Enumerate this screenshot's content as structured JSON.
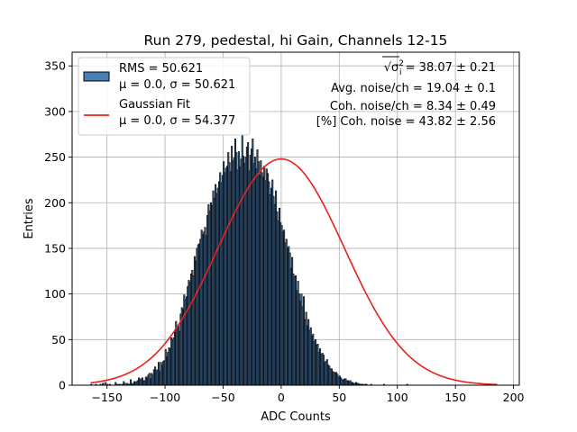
{
  "chart_data": {
    "type": "bar",
    "title": "Run 279, pedestal, hi Gain, Channels 12-15",
    "xlabel": "ADC Counts",
    "ylabel": "Entries",
    "xlim": [
      -180,
      205
    ],
    "ylim": [
      0,
      365
    ],
    "grid": true,
    "xticks": [
      -150,
      -100,
      -50,
      0,
      50,
      100,
      150,
      200
    ],
    "xtick_labels": [
      "−150",
      "−100",
      "−50",
      "0",
      "50",
      "100",
      "150",
      "200"
    ],
    "yticks": [
      0,
      50,
      100,
      150,
      200,
      250,
      300,
      350
    ],
    "ytick_labels": [
      "0",
      "50",
      "100",
      "150",
      "200",
      "250",
      "300",
      "350"
    ],
    "histogram": {
      "name": "RMS = 50.621",
      "params": "μ = 0.0, σ = 50.621",
      "bin_start": -164,
      "bin_width": 1,
      "counts": [
        1,
        0,
        0,
        0,
        1,
        0,
        0,
        0,
        1,
        0,
        2,
        0,
        3,
        0,
        1,
        0,
        1,
        0,
        0,
        0,
        0,
        3,
        1,
        0,
        1,
        1,
        0,
        1,
        4,
        2,
        0,
        2,
        1,
        1,
        6,
        2,
        1,
        4,
        3,
        4,
        5,
        8,
        6,
        7,
        8,
        5,
        5,
        9,
        8,
        11,
        13,
        7,
        13,
        11,
        17,
        20,
        16,
        17,
        25,
        15,
        25,
        22,
        26,
        27,
        39,
        31,
        36,
        41,
        40,
        52,
        50,
        52,
        58,
        70,
        65,
        65,
        59,
        78,
        85,
        83,
        99,
        94,
        97,
        108,
        115,
        113,
        122,
        126,
        120,
        141,
        136,
        150,
        154,
        155,
        160,
        170,
        165,
        168,
        173,
        164,
        186,
        198,
        191,
        200,
        197,
        213,
        205,
        220,
        210,
        216,
        223,
        233,
        222,
        230,
        245,
        233,
        238,
        240,
        255,
        244,
        234,
        262,
        246,
        249,
        270,
        255,
        236,
        256,
        239,
        248,
        275,
        251,
        243,
        250,
        261,
        266,
        235,
        252,
        259,
        270,
        243,
        250,
        237,
        258,
        245,
        230,
        246,
        233,
        228,
        240,
        224,
        237,
        232,
        223,
        209,
        216,
        225,
        207,
        198,
        213,
        190,
        180,
        194,
        178,
        175,
        168,
        170,
        156,
        160,
        150,
        152,
        145,
        128,
        140,
        122,
        119,
        120,
        104,
        114,
        100,
        92,
        100,
        86,
        97,
        72,
        80,
        65,
        72,
        60,
        63,
        54,
        56,
        48,
        50,
        44,
        45,
        36,
        40,
        34,
        35,
        33,
        25,
        26,
        28,
        22,
        21,
        18,
        18,
        15,
        14,
        14,
        14,
        12,
        9,
        10,
        8,
        6,
        6,
        7,
        7,
        5,
        5,
        4,
        5,
        3,
        3,
        2,
        2,
        3,
        2,
        2,
        1,
        1,
        1,
        1,
        0,
        1,
        1,
        0,
        0,
        0,
        1,
        0,
        0,
        0,
        0,
        0,
        0,
        0,
        0,
        0,
        0,
        1,
        0,
        0,
        0,
        0,
        0,
        0,
        0,
        0,
        0,
        0,
        0,
        0,
        0,
        0,
        0,
        0,
        0,
        0,
        0,
        1
      ],
      "color": "#4a7fb5",
      "edge_color": "#000000"
    },
    "series": [
      {
        "name": "Gaussian Fit",
        "params": "μ = 0.0, σ = 54.377",
        "mu": 0.0,
        "sigma": 54.377,
        "peak": 248,
        "x_range": [
          -164,
          186
        ],
        "color": "#e8211c"
      }
    ],
    "legend_position": "upper-left",
    "annotations": [
      {
        "prefix": "√",
        "symbol": "σ",
        "superscript": "2",
        "subscript": "i",
        "text": " = 38.07 ± 0.21"
      },
      {
        "text": "Avg. noise/ch = 19.04 ± 0.1"
      },
      {
        "text": "Coh. noise/ch = 8.34 ± 0.49"
      },
      {
        "text": "[%] Coh. noise = 43.82 ± 2.56"
      }
    ]
  }
}
